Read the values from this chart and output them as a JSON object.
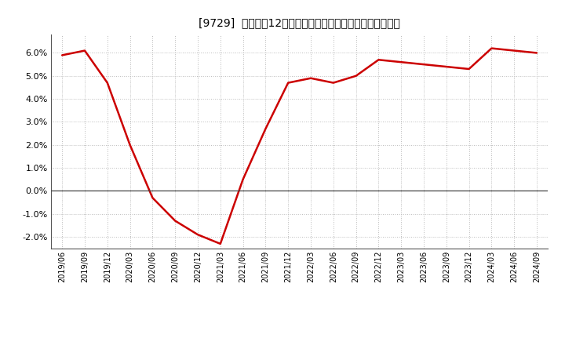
{
  "title": "[9729]  売上高の12か月移動合計の対前年同期増減率の推移",
  "line_color": "#cc0000",
  "background_color": "#ffffff",
  "plot_bg_color": "#ffffff",
  "grid_color": "#bbbbbb",
  "ylim": [
    -0.025,
    0.068
  ],
  "yticks": [
    -0.02,
    -0.01,
    0.0,
    0.01,
    0.02,
    0.03,
    0.04,
    0.05,
    0.06
  ],
  "dates": [
    "2019/06",
    "2019/09",
    "2019/12",
    "2020/03",
    "2020/06",
    "2020/09",
    "2020/12",
    "2021/03",
    "2021/06",
    "2021/09",
    "2021/12",
    "2022/03",
    "2022/06",
    "2022/09",
    "2022/12",
    "2023/03",
    "2023/06",
    "2023/09",
    "2023/12",
    "2024/03",
    "2024/06",
    "2024/09"
  ],
  "values": [
    0.059,
    0.061,
    0.047,
    0.02,
    -0.003,
    -0.013,
    -0.019,
    -0.023,
    0.005,
    0.027,
    0.047,
    0.049,
    0.047,
    0.05,
    0.057,
    0.056,
    0.055,
    0.054,
    0.053,
    0.062,
    0.061,
    0.06
  ],
  "title_fontsize": 11,
  "tick_fontsize": 8,
  "linewidth": 1.8
}
